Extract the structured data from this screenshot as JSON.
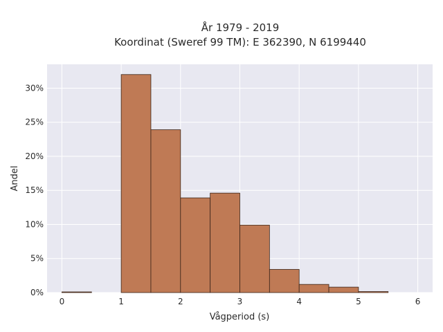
{
  "chart_data": {
    "type": "bar",
    "title_line1": "År 1979 - 2019",
    "title_line2": "Koordinat (Sweref 99 TM): E 362390, N 6199440",
    "xlabel": "Vågperiod (s)",
    "ylabel": "Andel",
    "xlim": [
      -0.25,
      6.25
    ],
    "ylim": [
      0,
      33.5
    ],
    "x_ticks": [
      0,
      1,
      2,
      3,
      4,
      5,
      6
    ],
    "x_tick_labels": [
      "0",
      "1",
      "2",
      "3",
      "4",
      "5",
      "6"
    ],
    "y_ticks": [
      0,
      5,
      10,
      15,
      20,
      25,
      30
    ],
    "y_tick_labels": [
      "0%",
      "5%",
      "10%",
      "15%",
      "20%",
      "25%",
      "30%"
    ],
    "grid": true,
    "bar_color": "#bf7a55",
    "bins": [
      {
        "x0": 0.0,
        "x1": 0.5,
        "value": 0.1
      },
      {
        "x0": 0.5,
        "x1": 1.0,
        "value": 0.0
      },
      {
        "x0": 1.0,
        "x1": 1.5,
        "value": 32.0
      },
      {
        "x0": 1.5,
        "x1": 2.0,
        "value": 23.9
      },
      {
        "x0": 2.0,
        "x1": 2.5,
        "value": 13.9
      },
      {
        "x0": 2.5,
        "x1": 3.0,
        "value": 14.6
      },
      {
        "x0": 3.0,
        "x1": 3.5,
        "value": 9.9
      },
      {
        "x0": 3.5,
        "x1": 4.0,
        "value": 3.4
      },
      {
        "x0": 4.0,
        "x1": 4.5,
        "value": 1.2
      },
      {
        "x0": 4.5,
        "x1": 5.0,
        "value": 0.8
      },
      {
        "x0": 5.0,
        "x1": 5.5,
        "value": 0.15
      }
    ]
  }
}
